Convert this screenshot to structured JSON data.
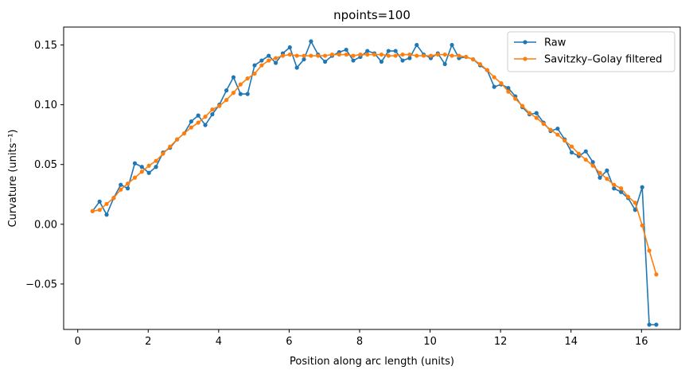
{
  "chart_data": {
    "type": "line",
    "title": "npoints=100",
    "xlabel": "Position along arc length (units)",
    "ylabel": "Curvature (units⁻¹)",
    "xlim": [
      -0.4,
      17.1
    ],
    "ylim": [
      -0.088,
      0.165
    ],
    "xticks": [
      0,
      2,
      4,
      6,
      8,
      10,
      12,
      14,
      16
    ],
    "yticks": [
      -0.05,
      0.0,
      0.05,
      0.1,
      0.15
    ],
    "ytick_labels": [
      "−0.05",
      "0.00",
      "0.05",
      "0.10",
      "0.15"
    ],
    "grid": false,
    "legend_position": "top-right",
    "colors": {
      "Raw": "#1f77b4",
      "Savitzky–Golay filtered": "#ff7f0e"
    },
    "series": [
      {
        "name": "Raw",
        "x": [
          0.42,
          0.62,
          0.82,
          1.02,
          1.22,
          1.42,
          1.62,
          1.82,
          2.02,
          2.22,
          2.42,
          2.62,
          2.82,
          3.02,
          3.22,
          3.42,
          3.62,
          3.82,
          4.02,
          4.22,
          4.42,
          4.62,
          4.82,
          5.02,
          5.22,
          5.42,
          5.62,
          5.82,
          6.02,
          6.22,
          6.42,
          6.62,
          6.82,
          7.02,
          7.22,
          7.42,
          7.62,
          7.82,
          8.02,
          8.22,
          8.42,
          8.62,
          8.82,
          9.02,
          9.22,
          9.42,
          9.62,
          9.82,
          10.02,
          10.22,
          10.42,
          10.62,
          10.82,
          11.02,
          11.22,
          11.42,
          11.62,
          11.82,
          12.02,
          12.22,
          12.42,
          12.62,
          12.82,
          13.02,
          13.22,
          13.42,
          13.62,
          13.82,
          14.02,
          14.22,
          14.42,
          14.62,
          14.82,
          15.02,
          15.22,
          15.42,
          15.62,
          15.82,
          16.02,
          16.22,
          16.42
        ],
        "y": [
          0.011,
          0.019,
          0.008,
          0.022,
          0.033,
          0.03,
          0.051,
          0.048,
          0.043,
          0.048,
          0.06,
          0.064,
          0.071,
          0.076,
          0.086,
          0.091,
          0.083,
          0.092,
          0.1,
          0.112,
          0.123,
          0.109,
          0.109,
          0.133,
          0.137,
          0.141,
          0.135,
          0.143,
          0.148,
          0.131,
          0.138,
          0.153,
          0.142,
          0.136,
          0.141,
          0.144,
          0.146,
          0.137,
          0.14,
          0.145,
          0.143,
          0.136,
          0.145,
          0.145,
          0.137,
          0.139,
          0.15,
          0.142,
          0.139,
          0.143,
          0.134,
          0.15,
          0.139,
          0.14,
          0.138,
          0.133,
          0.129,
          0.115,
          0.117,
          0.114,
          0.107,
          0.098,
          0.092,
          0.093,
          0.085,
          0.078,
          0.08,
          0.071,
          0.06,
          0.057,
          0.061,
          0.052,
          0.039,
          0.045,
          0.03,
          0.027,
          0.022,
          0.012,
          0.031,
          -0.084,
          -0.084
        ]
      },
      {
        "name": "Savitzky–Golay filtered",
        "x": [
          0.42,
          0.62,
          0.82,
          1.02,
          1.22,
          1.42,
          1.62,
          1.82,
          2.02,
          2.22,
          2.42,
          2.62,
          2.82,
          3.02,
          3.22,
          3.42,
          3.62,
          3.82,
          4.02,
          4.22,
          4.42,
          4.62,
          4.82,
          5.02,
          5.22,
          5.42,
          5.62,
          5.82,
          6.02,
          6.22,
          6.42,
          6.62,
          6.82,
          7.02,
          7.22,
          7.42,
          7.62,
          7.82,
          8.02,
          8.22,
          8.42,
          8.62,
          8.82,
          9.02,
          9.22,
          9.42,
          9.62,
          9.82,
          10.02,
          10.22,
          10.42,
          10.62,
          10.82,
          11.02,
          11.22,
          11.42,
          11.62,
          11.82,
          12.02,
          12.22,
          12.42,
          12.62,
          12.82,
          13.02,
          13.22,
          13.42,
          13.62,
          13.82,
          14.02,
          14.22,
          14.42,
          14.62,
          14.82,
          15.02,
          15.22,
          15.42,
          15.62,
          15.82,
          16.02,
          16.22,
          16.42
        ],
        "y": [
          0.011,
          0.012,
          0.017,
          0.022,
          0.029,
          0.034,
          0.039,
          0.044,
          0.049,
          0.053,
          0.059,
          0.065,
          0.071,
          0.076,
          0.081,
          0.085,
          0.09,
          0.096,
          0.099,
          0.104,
          0.11,
          0.117,
          0.122,
          0.126,
          0.133,
          0.137,
          0.139,
          0.141,
          0.142,
          0.141,
          0.141,
          0.141,
          0.141,
          0.141,
          0.142,
          0.142,
          0.142,
          0.141,
          0.142,
          0.142,
          0.142,
          0.142,
          0.141,
          0.141,
          0.142,
          0.142,
          0.141,
          0.141,
          0.141,
          0.142,
          0.142,
          0.141,
          0.141,
          0.14,
          0.138,
          0.134,
          0.129,
          0.123,
          0.118,
          0.111,
          0.105,
          0.099,
          0.093,
          0.089,
          0.084,
          0.079,
          0.075,
          0.07,
          0.065,
          0.059,
          0.054,
          0.049,
          0.043,
          0.038,
          0.033,
          0.03,
          0.023,
          0.018,
          -0.001,
          -0.022,
          -0.042
        ]
      }
    ]
  }
}
